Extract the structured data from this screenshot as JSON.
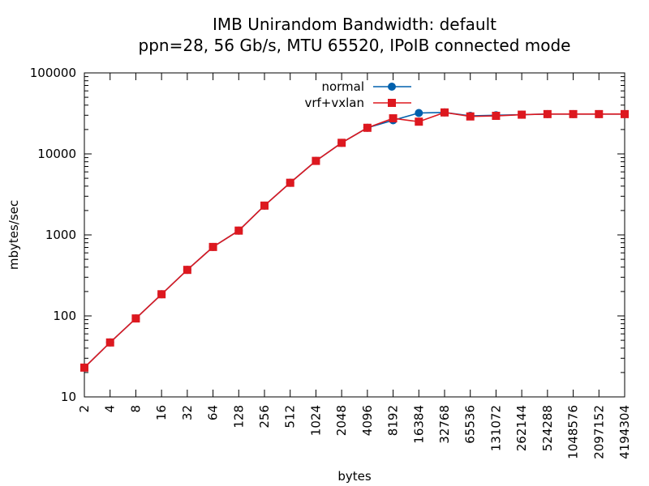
{
  "chart_data": {
    "type": "line",
    "title": "IMB Unirandom Bandwidth: default",
    "subtitle": "ppn=28, 56 Gb/s, MTU 65520, IPoIB connected mode",
    "xlabel": "bytes",
    "ylabel": "mbytes/sec",
    "x_scale": "log2",
    "y_scale": "log10",
    "xlim": [
      2,
      4194304
    ],
    "ylim": [
      10,
      100000
    ],
    "x_ticks": [
      2,
      4,
      8,
      16,
      32,
      64,
      128,
      256,
      512,
      1024,
      2048,
      4096,
      8192,
      16384,
      32768,
      65536,
      131072,
      262144,
      524288,
      1048576,
      2097152,
      4194304
    ],
    "y_ticks": [
      10,
      100,
      1000,
      10000,
      100000
    ],
    "grid": false,
    "legend_position": "top-center",
    "x": [
      2,
      4,
      8,
      16,
      32,
      64,
      128,
      256,
      512,
      1024,
      2048,
      4096,
      8192,
      16384,
      32768,
      65536,
      131072,
      262144,
      524288,
      1048576,
      2097152,
      4194304
    ],
    "series": [
      {
        "name": "normal",
        "color": "#0060ad",
        "marker": "circle",
        "values": [
          23,
          47,
          93,
          185,
          370,
          710,
          1130,
          2300,
          4400,
          8200,
          13700,
          21000,
          26000,
          32000,
          32500,
          29500,
          30000,
          30500,
          31000,
          31000,
          31000,
          31000
        ]
      },
      {
        "name": "vrf+vxlan",
        "color": "#dd181f",
        "marker": "square",
        "values": [
          23,
          47,
          93,
          185,
          370,
          710,
          1130,
          2300,
          4400,
          8200,
          13700,
          21000,
          27500,
          25000,
          32500,
          29000,
          29500,
          30500,
          31000,
          31000,
          31000,
          31000
        ]
      }
    ]
  }
}
